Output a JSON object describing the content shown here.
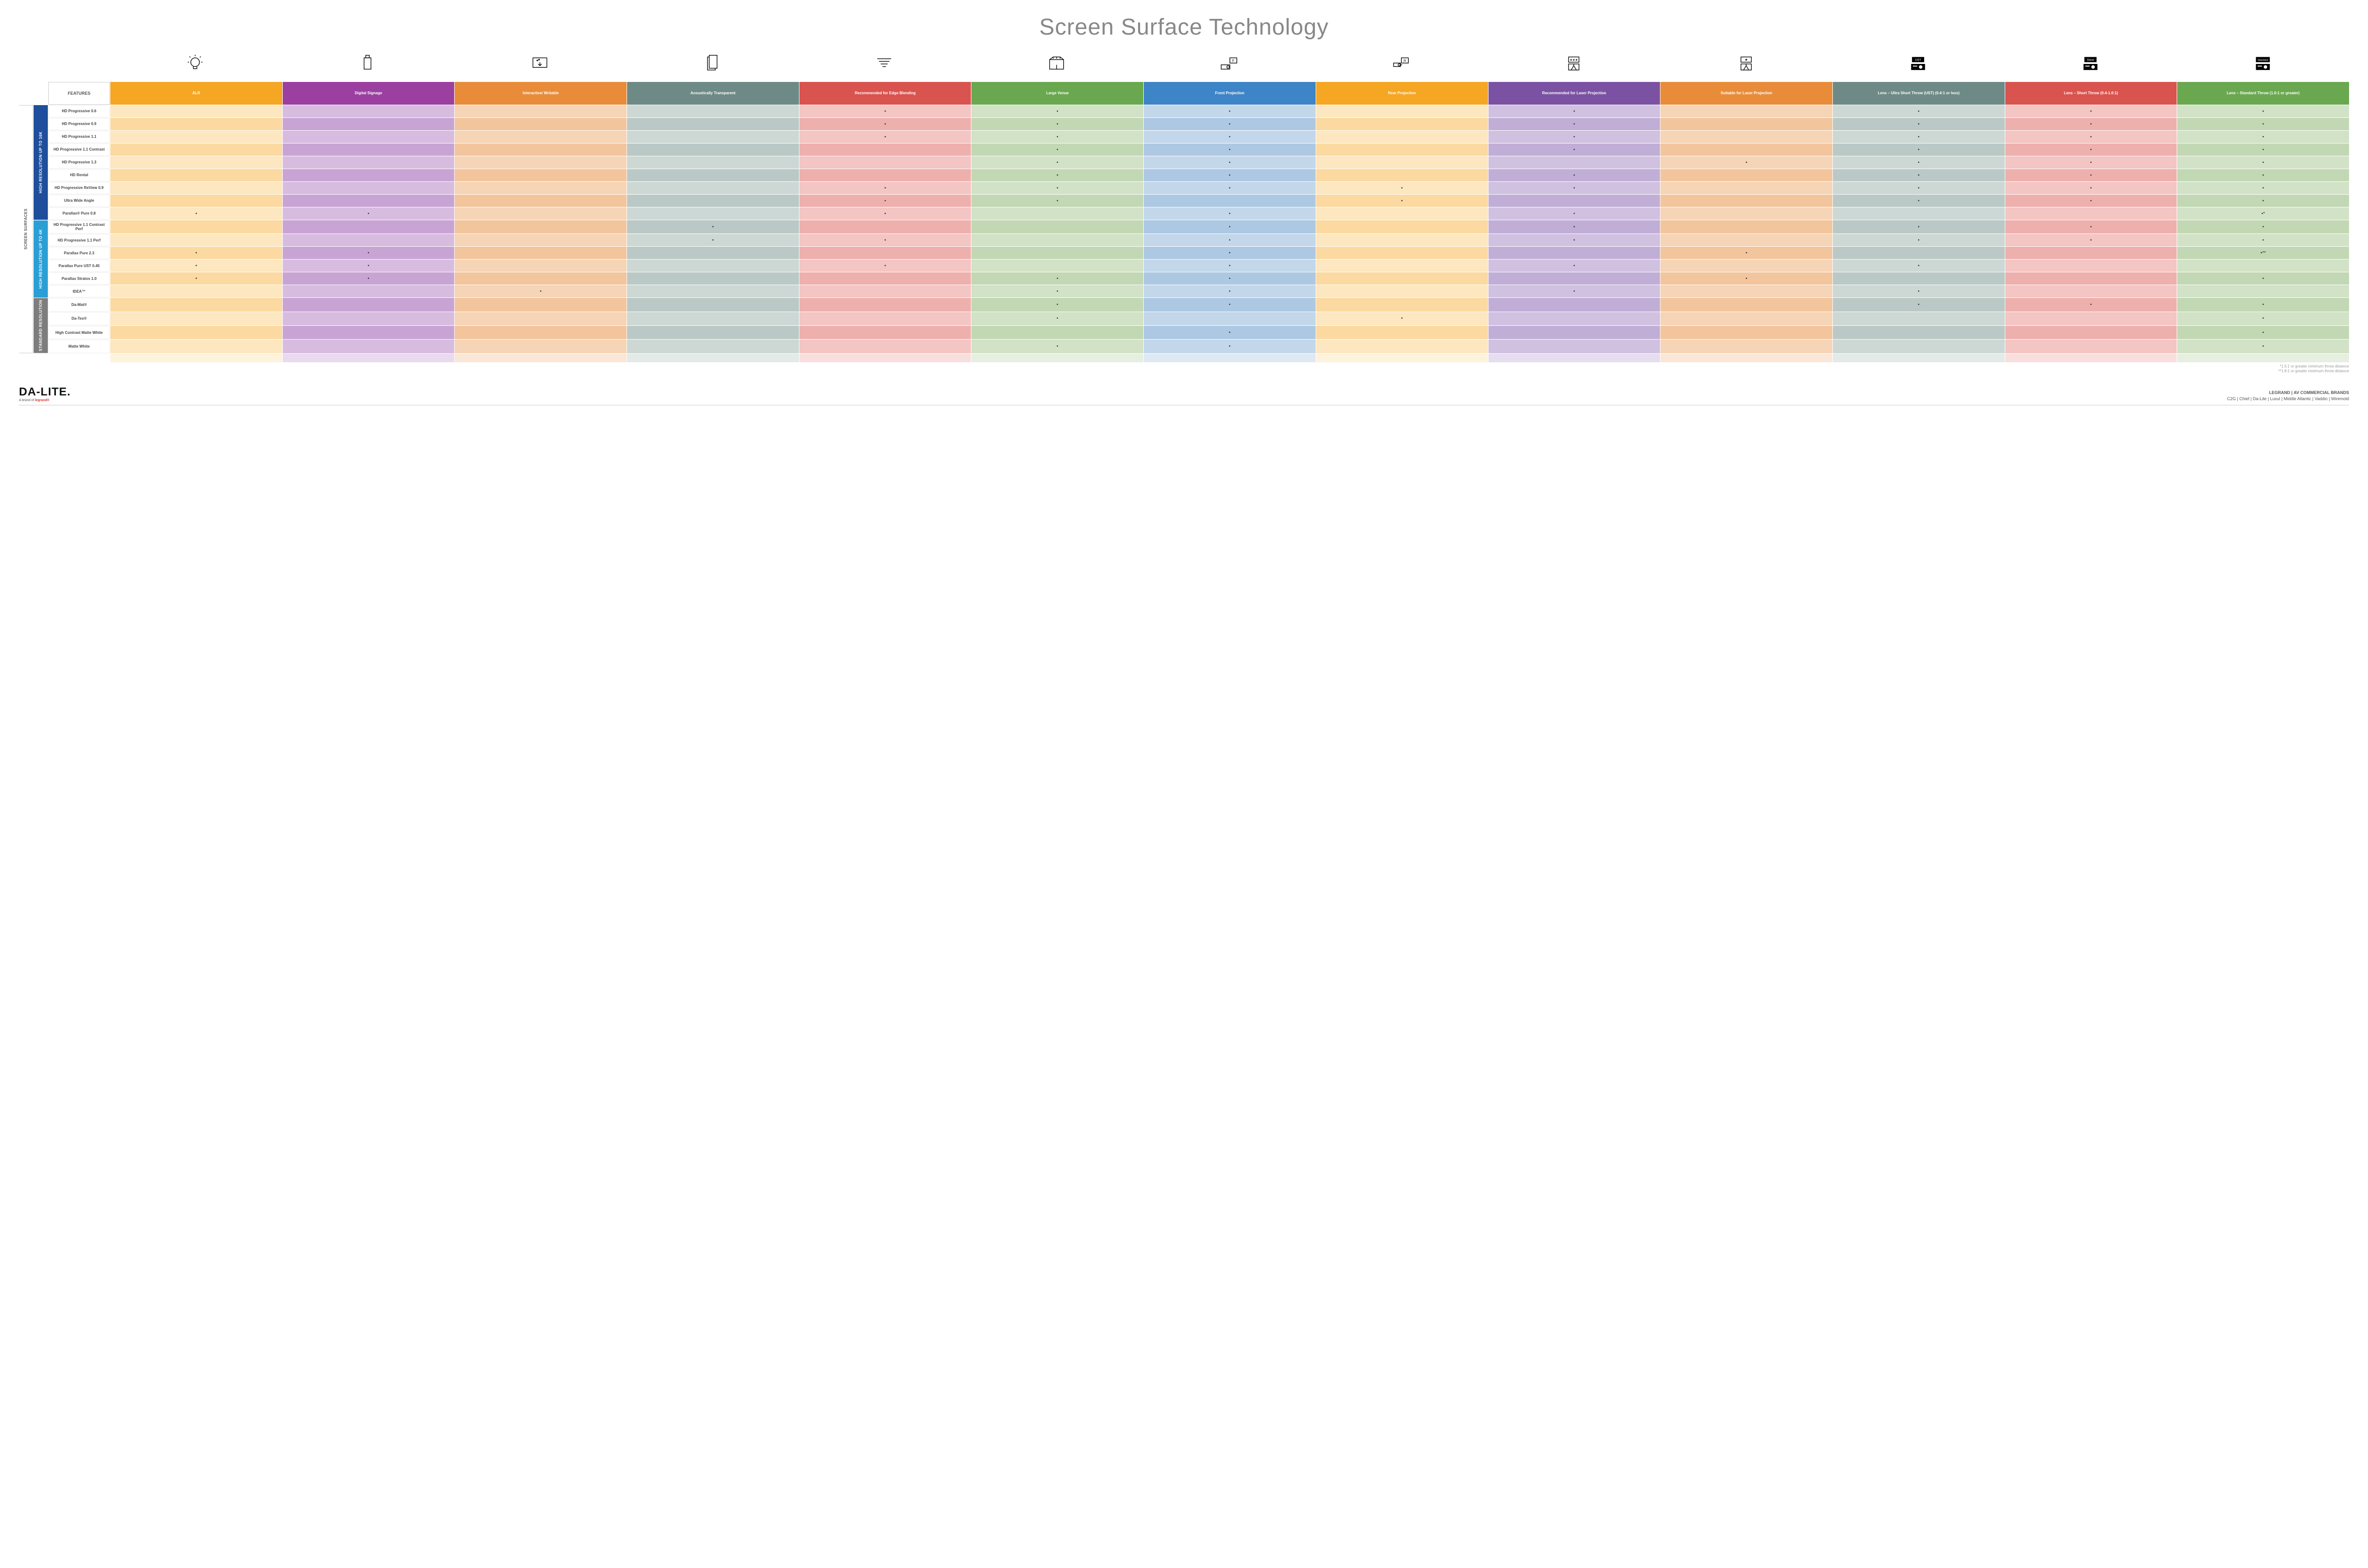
{
  "title": "Screen Surface Technology",
  "table": {
    "features_label": "FEATURES",
    "columns": [
      {
        "key": "alr",
        "label": "ALR",
        "header_bg": "#f5a623",
        "colors": [
          "#fce7c0",
          "#fbd9a0"
        ]
      },
      {
        "key": "digsig",
        "label": "Digital Signage",
        "header_bg": "#9b3fa0",
        "colors": [
          "#d8bce0",
          "#c8a4d4"
        ]
      },
      {
        "key": "interactive",
        "label": "Interactive/ Writable",
        "header_bg": "#e88c3a",
        "colors": [
          "#f6d4b6",
          "#f3c59d"
        ]
      },
      {
        "key": "acoustic",
        "label": "Acoustically Transparent",
        "header_bg": "#6e8a86",
        "colors": [
          "#cdd8d5",
          "#bac9c5"
        ]
      },
      {
        "key": "edge",
        "label": "Recommended for Edge Blending",
        "header_bg": "#d9534f",
        "colors": [
          "#f3c5c3",
          "#eeb0ad"
        ]
      },
      {
        "key": "large",
        "label": "Large Venue",
        "header_bg": "#6aa84f",
        "colors": [
          "#d2e2c7",
          "#c2d8b4"
        ]
      },
      {
        "key": "front",
        "label": "Front Projection",
        "header_bg": "#3d85c6",
        "colors": [
          "#c3d7ea",
          "#adc8e2"
        ]
      },
      {
        "key": "rear",
        "label": "Rear Projection",
        "header_bg": "#f5a623",
        "colors": [
          "#fce7c0",
          "#fbd9a0"
        ]
      },
      {
        "key": "reclaser",
        "label": "Recommended for Laser Projection",
        "header_bg": "#7b52a3",
        "colors": [
          "#d1c1e0",
          "#c1aed6"
        ]
      },
      {
        "key": "suitlaser",
        "label": "Suitable for Laser Projection",
        "header_bg": "#e88c3a",
        "colors": [
          "#f6d4b6",
          "#f3c59d"
        ]
      },
      {
        "key": "ust",
        "label": "Lens – Ultra Short Throw (UST) (0.4:1 or less)",
        "header_bg": "#6e8a86",
        "colors": [
          "#cdd8d5",
          "#bac9c5"
        ]
      },
      {
        "key": "short",
        "label": "Lens – Short Throw (0.4-1.0:1)",
        "header_bg": "#d9534f",
        "colors": [
          "#f3c5c3",
          "#eeb0ad"
        ]
      },
      {
        "key": "std",
        "label": "Lens – Standard Throw (1.0:1 or greater)",
        "header_bg": "#6aa84f",
        "colors": [
          "#d2e2c7",
          "#c2d8b4"
        ]
      }
    ],
    "groups": [
      {
        "label": "HIGH RESOLUTION UP TO 16K",
        "color": "#1f4e9c",
        "rows": [
          {
            "label": "HD Progressive 0.6",
            "dots": {
              "edge": "•",
              "large": "•",
              "front": "•",
              "reclaser": "•",
              "ust": "•",
              "short": "•",
              "std": "•"
            }
          },
          {
            "label": "HD Progressive 0.9",
            "dots": {
              "edge": "•",
              "large": "•",
              "front": "•",
              "reclaser": "•",
              "ust": "•",
              "short": "•",
              "std": "•"
            }
          },
          {
            "label": "HD Progressive 1.1",
            "dots": {
              "edge": "•",
              "large": "•",
              "front": "•",
              "reclaser": "•",
              "ust": "•",
              "short": "•",
              "std": "•"
            }
          },
          {
            "label": "HD Progressive 1.1 Contrast",
            "dots": {
              "large": "•",
              "front": "•",
              "reclaser": "•",
              "ust": "•",
              "short": "•",
              "std": "•"
            }
          },
          {
            "label": "HD Progressive 1.3",
            "dots": {
              "large": "•",
              "front": "•",
              "suitlaser": "•",
              "ust": "•",
              "short": "•",
              "std": "•"
            }
          },
          {
            "label": "HD Rental",
            "dots": {
              "large": "•",
              "front": "•",
              "reclaser": "•",
              "ust": "•",
              "short": "•",
              "std": "•"
            }
          },
          {
            "label": "HD Progressive ReView 0.9",
            "dots": {
              "edge": "•",
              "large": "•",
              "front": "•",
              "rear": "•",
              "reclaser": "•",
              "ust": "•",
              "short": "•",
              "std": "•"
            }
          },
          {
            "label": "Ultra Wide Angle",
            "dots": {
              "edge": "•",
              "large": "•",
              "rear": "•",
              "ust": "•",
              "short": "•",
              "std": "•"
            }
          },
          {
            "label": "Parallax® Pure 0.8",
            "dots": {
              "alr": "•",
              "digsig": "•",
              "edge": "•",
              "front": "•",
              "reclaser": "•",
              "std": "•*"
            }
          }
        ]
      },
      {
        "label": "HIGH RESOLUTION UP TO 4K",
        "color": "#2a9fd6",
        "rows": [
          {
            "label": "HD Progressive 1.1 Contrast Perf",
            "dots": {
              "acoustic": "•",
              "front": "•",
              "reclaser": "•",
              "ust": "•",
              "short": "•",
              "std": "•"
            }
          },
          {
            "label": "HD Progressive 1.1 Perf",
            "dots": {
              "acoustic": "•",
              "edge": "•",
              "front": "•",
              "reclaser": "•",
              "ust": "•",
              "short": "•",
              "std": "•"
            }
          },
          {
            "label": "Parallax Pure 2.3",
            "dots": {
              "alr": "•",
              "digsig": "•",
              "front": "•",
              "suitlaser": "•",
              "std": "•**"
            }
          },
          {
            "label": "Parallax Pure UST 0.45",
            "dots": {
              "alr": "•",
              "digsig": "•",
              "edge": "•",
              "front": "•",
              "reclaser": "•",
              "ust": "•"
            }
          },
          {
            "label": "Parallax Stratos 1.0",
            "dots": {
              "alr": "•",
              "digsig": "•",
              "large": "•",
              "front": "•",
              "suitlaser": "•",
              "std": "•"
            }
          },
          {
            "label": "IDEA™",
            "dots": {
              "interactive": "•",
              "large": "•",
              "front": "•",
              "reclaser": "•",
              "ust": "•"
            }
          }
        ]
      },
      {
        "label": "STANDARD RESOLUTION",
        "color": "#7d7d7d",
        "rows": [
          {
            "label": "Da-Mat®",
            "dots": {
              "large": "•",
              "front": "•",
              "ust": "•",
              "short": "•",
              "std": "•"
            }
          },
          {
            "label": "Da-Tex®",
            "dots": {
              "large": "•",
              "rear": "•",
              "std": "•"
            }
          },
          {
            "label": "High Contrast Matte White",
            "dots": {
              "front": "•",
              "std": "•"
            }
          },
          {
            "label": "Matte White",
            "dots": {
              "large": "•",
              "front": "•",
              "std": "•"
            }
          }
        ]
      }
    ],
    "screen_surfaces_label": "SCREEN SURFACES"
  },
  "footnotes": [
    "*1.5:1 or greater minimum throw distance",
    "**1.8:1 or greater minimum throw distance"
  ],
  "footer": {
    "logo": "DA-LITE.",
    "logo_sub_prefix": "A brand of ",
    "logo_sub_brand": "legrand®",
    "brands_top": "LEGRAND | AV COMMERCIAL BRANDS",
    "brands_bottom": "C2G  |  Chief  |  Da-Lite  |  Luxul  |  Middle Atlantic  |  Vaddio  |  Wiremold"
  },
  "icons": [
    "lightbulb",
    "signage",
    "touch",
    "speaker",
    "prism",
    "large-venue",
    "front-proj",
    "rear-proj",
    "laser-rec",
    "laser-suit",
    "ust-proj",
    "short-proj",
    "std-proj"
  ]
}
